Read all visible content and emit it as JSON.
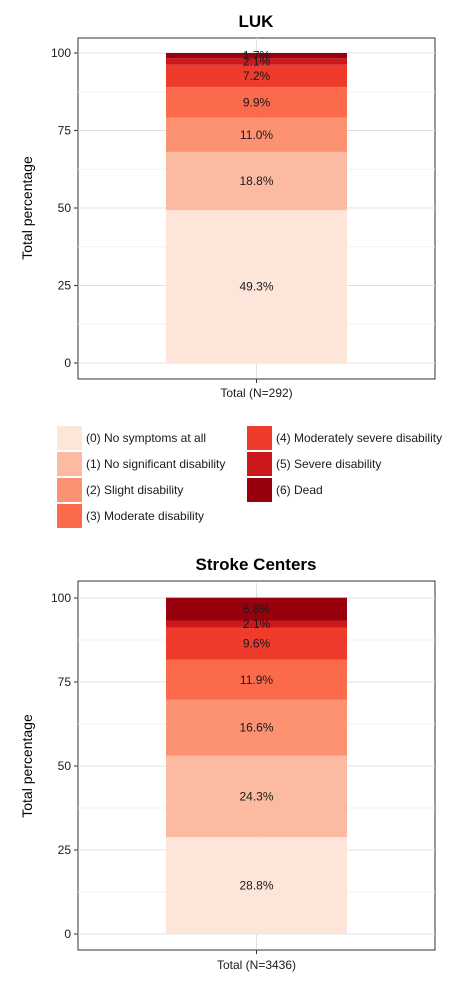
{
  "colors": [
    "#fee5d9",
    "#fcbba1",
    "#fc9272",
    "#fb6a4a",
    "#ef3b2c",
    "#cb181d",
    "#99000d"
  ],
  "legend": {
    "entries": [
      "(0) No symptoms at all",
      "(1) No significant disability",
      "(2) Slight disability",
      "(3) Moderate disability",
      "(4) Moderately severe disability",
      "(5) Severe disability",
      "(6) Dead"
    ]
  },
  "chart_data": [
    {
      "type": "bar",
      "stacked": true,
      "title": "LUK",
      "ylabel": "Total percentage",
      "xlabel": "",
      "ylim": [
        0,
        100
      ],
      "yticks": [
        0,
        25,
        50,
        75,
        100
      ],
      "categories": [
        "Total (N=292)"
      ],
      "series": [
        {
          "name": "(0) No symptoms at all",
          "values": [
            49.3
          ],
          "label": "49.3%"
        },
        {
          "name": "(1) No significant disability",
          "values": [
            18.8
          ],
          "label": "18.8%"
        },
        {
          "name": "(2) Slight disability",
          "values": [
            11.0
          ],
          "label": "11.0%"
        },
        {
          "name": "(3) Moderate disability",
          "values": [
            9.9
          ],
          "label": "9.9%"
        },
        {
          "name": "(4) Moderately severe disability",
          "values": [
            7.2
          ],
          "label": "7.2%"
        },
        {
          "name": "(5) Severe disability",
          "values": [
            2.1
          ],
          "label": "2.1%"
        },
        {
          "name": "(6) Dead",
          "values": [
            1.7
          ],
          "label": "1.7%"
        }
      ],
      "grid": true
    },
    {
      "type": "bar",
      "stacked": true,
      "title": "Stroke Centers",
      "ylabel": "Total percentage",
      "xlabel": "",
      "ylim": [
        0,
        100
      ],
      "yticks": [
        0,
        25,
        50,
        75,
        100
      ],
      "categories": [
        "Total (N=3436)"
      ],
      "series": [
        {
          "name": "(0) No symptoms at all",
          "values": [
            28.8
          ],
          "label": "28.8%"
        },
        {
          "name": "(1) No significant disability",
          "values": [
            24.3
          ],
          "label": "24.3%"
        },
        {
          "name": "(2) Slight disability",
          "values": [
            16.6
          ],
          "label": "16.6%"
        },
        {
          "name": "(3) Moderate disability",
          "values": [
            11.9
          ],
          "label": "11.9%"
        },
        {
          "name": "(4) Moderately severe disability",
          "values": [
            9.6
          ],
          "label": "9.6%"
        },
        {
          "name": "(5) Severe disability",
          "values": [
            2.1
          ],
          "label": "2.1%"
        },
        {
          "name": "(6) Dead",
          "values": [
            6.8
          ],
          "label": "6.8%"
        }
      ],
      "grid": true
    }
  ]
}
